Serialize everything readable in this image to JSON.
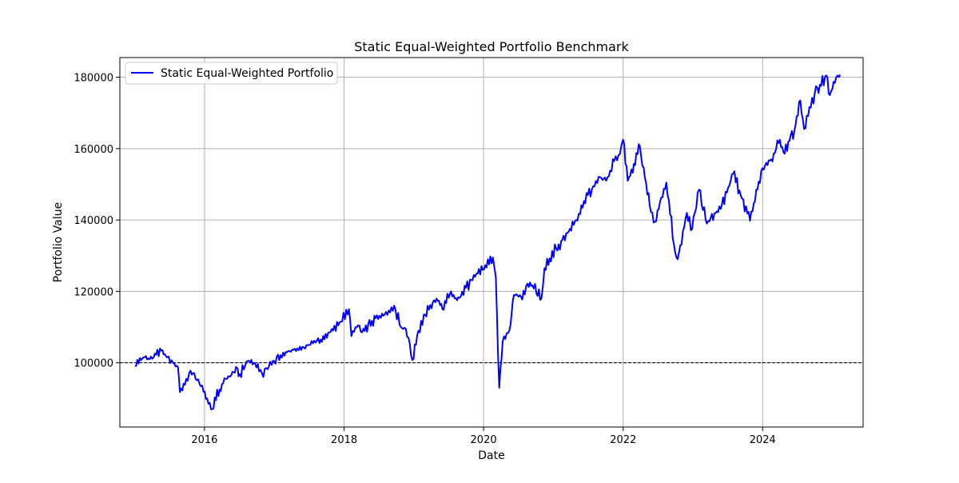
{
  "chart_data": {
    "type": "line",
    "title": "Static Equal-Weighted Portfolio Benchmark",
    "xlabel": "Date",
    "ylabel": "Portfolio Value",
    "xlim": [
      "2014-10-15",
      "2025-06-10"
    ],
    "ylim": [
      82000,
      185500
    ],
    "grid": true,
    "legend_position": "top-left",
    "x_tick_labels": [
      "2016",
      "2018",
      "2020",
      "2022",
      "2024"
    ],
    "y_tick_labels": [
      "100000",
      "120000",
      "140000",
      "160000",
      "180000"
    ],
    "reference_line": {
      "y": 100000,
      "style": "dashed",
      "color": "#000000"
    },
    "series": [
      {
        "name": "Static Equal-Weighted Portfolio",
        "color": "#0000ff",
        "points": [
          [
            "2015-01-02",
            99000
          ],
          [
            "2015-02-15",
            101500
          ],
          [
            "2015-03-20",
            101000
          ],
          [
            "2015-05-20",
            103400
          ],
          [
            "2015-06-20",
            101500
          ],
          [
            "2015-07-20",
            100000
          ],
          [
            "2015-08-15",
            98800
          ],
          [
            "2015-08-25",
            91800
          ],
          [
            "2015-09-20",
            93800
          ],
          [
            "2015-10-20",
            97800
          ],
          [
            "2015-11-15",
            95500
          ],
          [
            "2015-12-20",
            93600
          ],
          [
            "2016-01-15",
            90000
          ],
          [
            "2016-02-11",
            87000
          ],
          [
            "2016-03-20",
            92500
          ],
          [
            "2016-04-20",
            95500
          ],
          [
            "2016-05-20",
            96500
          ],
          [
            "2016-06-20",
            98500
          ],
          [
            "2016-06-27",
            96200
          ],
          [
            "2016-08-15",
            100500
          ],
          [
            "2016-09-15",
            100000
          ],
          [
            "2016-10-20",
            98000
          ],
          [
            "2016-11-04",
            96000
          ],
          [
            "2016-11-20",
            98500
          ],
          [
            "2016-12-31",
            100500
          ],
          [
            "2017-03-01",
            103000
          ],
          [
            "2017-05-01",
            104000
          ],
          [
            "2017-07-01",
            105000
          ],
          [
            "2017-09-01",
            106500
          ],
          [
            "2017-10-15",
            108500
          ],
          [
            "2017-12-15",
            111500
          ],
          [
            "2018-01-26",
            115000
          ],
          [
            "2018-02-08",
            107500
          ],
          [
            "2018-03-15",
            110500
          ],
          [
            "2018-04-05",
            108500
          ],
          [
            "2018-06-15",
            112500
          ],
          [
            "2018-08-01",
            113500
          ],
          [
            "2018-09-20",
            116000
          ],
          [
            "2018-10-25",
            110000
          ],
          [
            "2018-11-20",
            109500
          ],
          [
            "2018-12-24",
            100800
          ],
          [
            "2019-01-25",
            109000
          ],
          [
            "2019-03-01",
            113500
          ],
          [
            "2019-04-30",
            118000
          ],
          [
            "2019-05-31",
            115000
          ],
          [
            "2019-07-15",
            120000
          ],
          [
            "2019-08-15",
            117500
          ],
          [
            "2019-10-01",
            121000
          ],
          [
            "2019-12-01",
            125000
          ],
          [
            "2020-02-19",
            129500
          ],
          [
            "2020-03-05",
            124000
          ],
          [
            "2020-03-23",
            93000
          ],
          [
            "2020-04-10",
            106000
          ],
          [
            "2020-05-15",
            109000
          ],
          [
            "2020-06-08",
            119000
          ],
          [
            "2020-07-15",
            118500
          ],
          [
            "2020-08-31",
            122500
          ],
          [
            "2020-10-30",
            118000
          ],
          [
            "2020-11-15",
            126500
          ],
          [
            "2021-01-15",
            132000
          ],
          [
            "2021-04-30",
            140000
          ],
          [
            "2021-06-30",
            147000
          ],
          [
            "2021-09-01",
            152000
          ],
          [
            "2021-10-04",
            151000
          ],
          [
            "2021-11-15",
            156500
          ],
          [
            "2021-12-15",
            158500
          ],
          [
            "2021-12-31",
            162500
          ],
          [
            "2022-01-25",
            151000
          ],
          [
            "2022-03-30",
            160500
          ],
          [
            "2022-05-20",
            144000
          ],
          [
            "2022-06-16",
            139500
          ],
          [
            "2022-08-15",
            150500
          ],
          [
            "2022-09-30",
            131000
          ],
          [
            "2022-10-13",
            129000
          ],
          [
            "2022-11-30",
            142000
          ],
          [
            "2022-12-28",
            137500
          ],
          [
            "2023-02-02",
            148500
          ],
          [
            "2023-03-15",
            139000
          ],
          [
            "2023-04-30",
            142000
          ],
          [
            "2023-06-01",
            144000
          ],
          [
            "2023-07-31",
            153000
          ],
          [
            "2023-09-15",
            146000
          ],
          [
            "2023-10-27",
            139800
          ],
          [
            "2023-12-31",
            154500
          ],
          [
            "2024-02-15",
            157000
          ],
          [
            "2024-03-31",
            162500
          ],
          [
            "2024-04-19",
            159000
          ],
          [
            "2024-06-15",
            165000
          ],
          [
            "2024-07-16",
            173500
          ],
          [
            "2024-08-05",
            165500
          ],
          [
            "2024-09-30",
            175500
          ],
          [
            "2024-11-29",
            180500
          ],
          [
            "2024-12-18",
            175000
          ],
          [
            "2025-01-20",
            180000
          ],
          [
            "2025-02-10",
            180700
          ]
        ]
      }
    ]
  }
}
